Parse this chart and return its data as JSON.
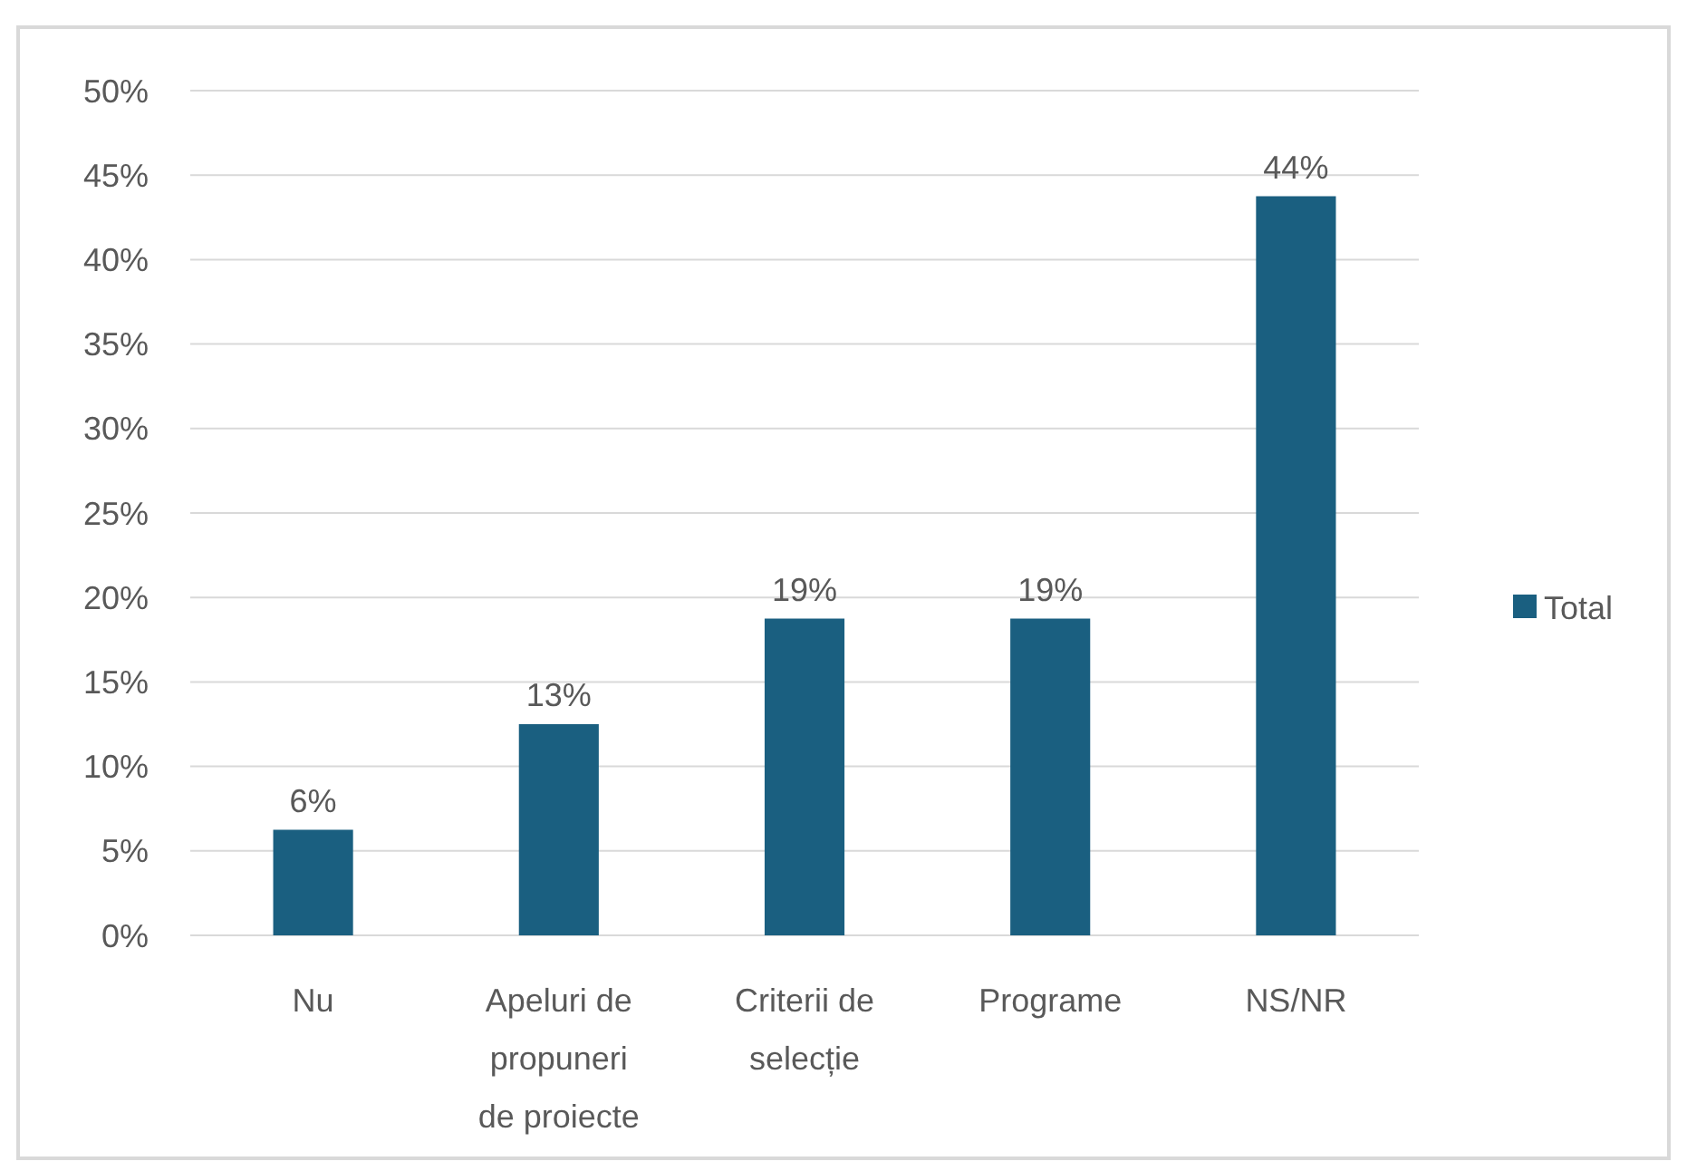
{
  "chart_data": {
    "type": "bar",
    "categories": [
      "Nu",
      "Apeluri de propuneri de proiecte",
      "Criterii de selecție",
      "Programe",
      "NS/NR"
    ],
    "series": [
      {
        "name": "Total",
        "color": "#1a5f80",
        "values": [
          6.25,
          12.5,
          18.75,
          18.75,
          43.75
        ],
        "value_labels": [
          "6%",
          "13%",
          "19%",
          "19%",
          "44%"
        ]
      }
    ],
    "ylim": [
      0,
      50
    ],
    "yticks": [
      {
        "value": 0,
        "label": "0%"
      },
      {
        "value": 5,
        "label": "5%"
      },
      {
        "value": 10,
        "label": "10%"
      },
      {
        "value": 15,
        "label": "15%"
      },
      {
        "value": 20,
        "label": "20%"
      },
      {
        "value": 25,
        "label": "25%"
      },
      {
        "value": 30,
        "label": "30%"
      },
      {
        "value": 35,
        "label": "35%"
      },
      {
        "value": 40,
        "label": "40%"
      },
      {
        "value": 45,
        "label": "45%"
      },
      {
        "value": 50,
        "label": "50%"
      }
    ],
    "grid": "y",
    "legend": "right"
  }
}
